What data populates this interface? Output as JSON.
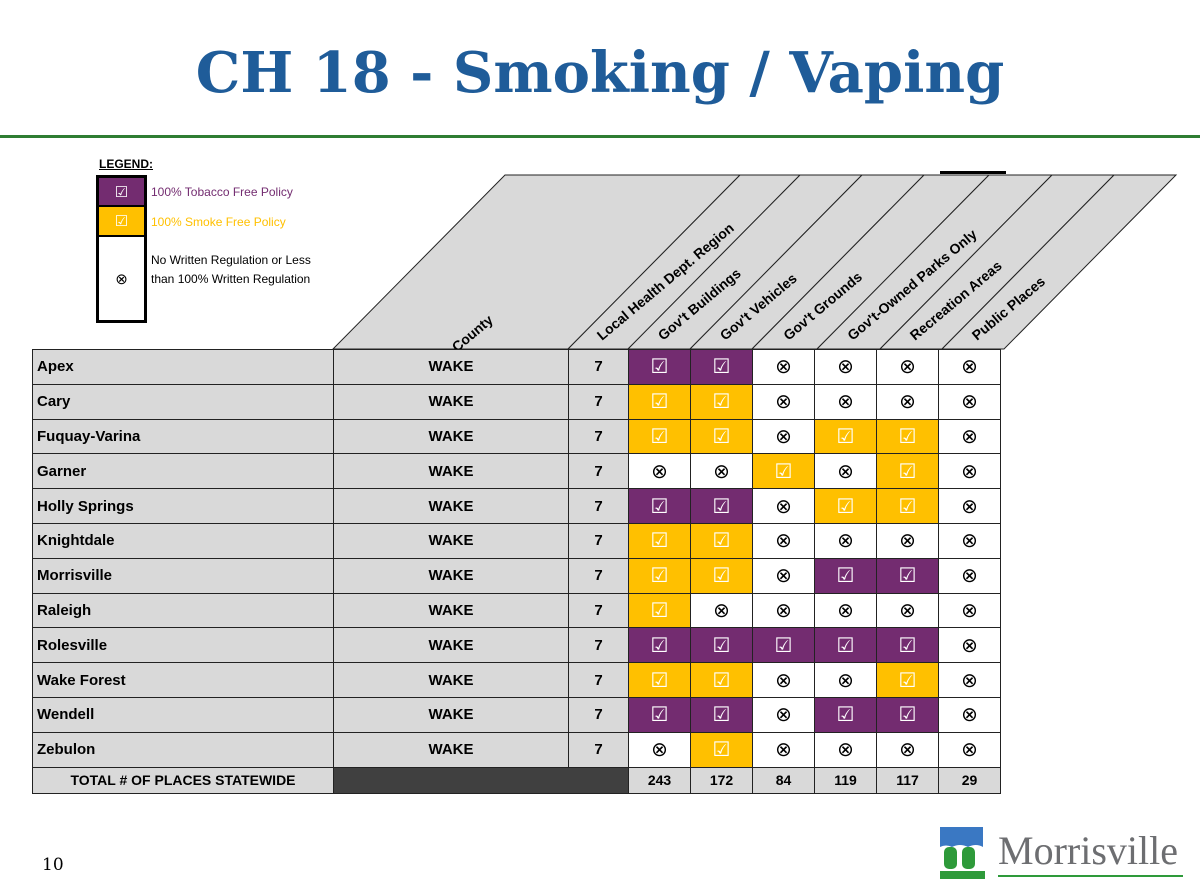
{
  "title": "CH 18 - Smoking / Vaping",
  "legend": {
    "title": "LEGEND:",
    "items": [
      {
        "key": "P",
        "label": "100% Tobacco Free Policy",
        "color": "#732c70",
        "text_color": "#732c70",
        "icon": "checkbox-checked-icon"
      },
      {
        "key": "Y",
        "label": "100% Smoke Free Policy",
        "color": "#ffc000",
        "text_color": "#ffc000",
        "icon": "checkbox-checked-icon"
      },
      {
        "key": "X",
        "label": "No Written Regulation or Less than 100% Written Regulation",
        "color": "#ffffff",
        "text_color": "#000000",
        "icon": "circle-x-icon"
      }
    ]
  },
  "columns": [
    "County",
    "Local Health Dept. Region",
    "Gov't  Buildings",
    "Gov't Vehicles",
    "Gov't Grounds",
    "Gov't-Owned Parks Only",
    "Recreation Areas",
    "Public Places"
  ],
  "rows": [
    {
      "name": "Apex",
      "county": "WAKE",
      "region": "7",
      "status": [
        "P",
        "P",
        "X",
        "X",
        "X",
        "X"
      ]
    },
    {
      "name": "Cary",
      "county": "WAKE",
      "region": "7",
      "status": [
        "Y",
        "Y",
        "X",
        "X",
        "X",
        "X"
      ]
    },
    {
      "name": "Fuquay-Varina",
      "county": "WAKE",
      "region": "7",
      "status": [
        "Y",
        "Y",
        "X",
        "Y",
        "Y",
        "X"
      ]
    },
    {
      "name": "Garner",
      "county": "WAKE",
      "region": "7",
      "status": [
        "X",
        "X",
        "Y",
        "X",
        "Y",
        "X"
      ]
    },
    {
      "name": "Holly Springs",
      "county": "WAKE",
      "region": "7",
      "status": [
        "P",
        "P",
        "X",
        "Y",
        "Y",
        "X"
      ]
    },
    {
      "name": "Knightdale",
      "county": "WAKE",
      "region": "7",
      "status": [
        "Y",
        "Y",
        "X",
        "X",
        "X",
        "X"
      ]
    },
    {
      "name": "Morrisville",
      "county": "WAKE",
      "region": "7",
      "status": [
        "Y",
        "Y",
        "X",
        "P",
        "P",
        "X"
      ]
    },
    {
      "name": "Raleigh",
      "county": "WAKE",
      "region": "7",
      "status": [
        "Y",
        "X",
        "X",
        "X",
        "X",
        "X"
      ]
    },
    {
      "name": "Rolesville",
      "county": "WAKE",
      "region": "7",
      "status": [
        "P",
        "P",
        "P",
        "P",
        "P",
        "X"
      ]
    },
    {
      "name": "Wake Forest",
      "county": "WAKE",
      "region": "7",
      "status": [
        "Y",
        "Y",
        "X",
        "X",
        "Y",
        "X"
      ]
    },
    {
      "name": "Wendell",
      "county": "WAKE",
      "region": "7",
      "status": [
        "P",
        "P",
        "X",
        "P",
        "P",
        "X"
      ]
    },
    {
      "name": "Zebulon",
      "county": "WAKE",
      "region": "7",
      "status": [
        "X",
        "Y",
        "X",
        "X",
        "X",
        "X"
      ]
    }
  ],
  "totals": {
    "label": "TOTAL # OF PLACES STATEWIDE",
    "values": [
      "243",
      "172",
      "84",
      "119",
      "117",
      "29"
    ]
  },
  "page_number": "10",
  "logo": {
    "text": "Morrisville"
  }
}
